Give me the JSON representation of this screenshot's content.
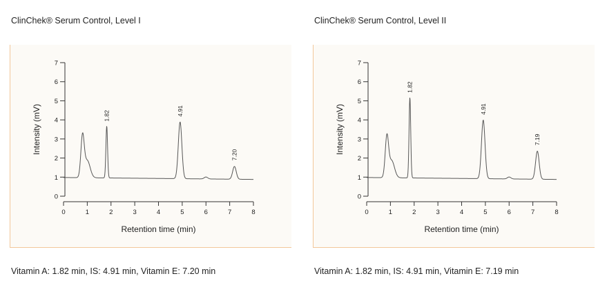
{
  "chart_data": [
    {
      "type": "line",
      "title": "ClinChek® Serum Control, Level I",
      "xlabel": "Retention time (min)",
      "ylabel": "Intensity (mV)",
      "xlim": [
        0,
        8
      ],
      "ylim": [
        0,
        7
      ],
      "xticks": [
        "0",
        "1",
        "2",
        "3",
        "4",
        "5",
        "6",
        "7",
        "8"
      ],
      "yticks": [
        "0",
        "1",
        "2",
        "3",
        "4",
        "5",
        "6",
        "7"
      ],
      "baseline": 0.98,
      "end_value": 0.88,
      "peaks": [
        {
          "x": 0.8,
          "height": 3.1,
          "label": ""
        },
        {
          "x": 1.82,
          "height": 3.7,
          "label": "1.82"
        },
        {
          "x": 4.91,
          "height": 3.95,
          "label": "4.91"
        },
        {
          "x": 6.0,
          "height": 1.08,
          "label": ""
        },
        {
          "x": 7.2,
          "height": 1.65,
          "label": "7.20"
        }
      ],
      "caption": "Vitamin A: 1.82 min, IS: 4.91 min, Vitamin E: 7.20 min"
    },
    {
      "type": "line",
      "title": "ClinChek® Serum Control, Level II",
      "xlabel": "Retention time (min)",
      "ylabel": "Intensity (mV)",
      "xlim": [
        0,
        8
      ],
      "ylim": [
        0,
        7
      ],
      "xticks": [
        "0",
        "1",
        "2",
        "3",
        "4",
        "5",
        "6",
        "7",
        "8"
      ],
      "yticks": [
        "0",
        "1",
        "2",
        "3",
        "4",
        "5",
        "6",
        "7"
      ],
      "baseline": 0.98,
      "end_value": 0.88,
      "peaks": [
        {
          "x": 0.85,
          "height": 3.05,
          "label": ""
        },
        {
          "x": 1.82,
          "height": 5.2,
          "label": "1.82"
        },
        {
          "x": 4.91,
          "height": 4.05,
          "label": "4.91"
        },
        {
          "x": 6.0,
          "height": 1.08,
          "label": ""
        },
        {
          "x": 7.19,
          "height": 2.45,
          "label": "7.19"
        }
      ],
      "caption": "Vitamin A: 1.82 min, IS: 4.91 min, Vitamin E: 7.19 min"
    }
  ]
}
